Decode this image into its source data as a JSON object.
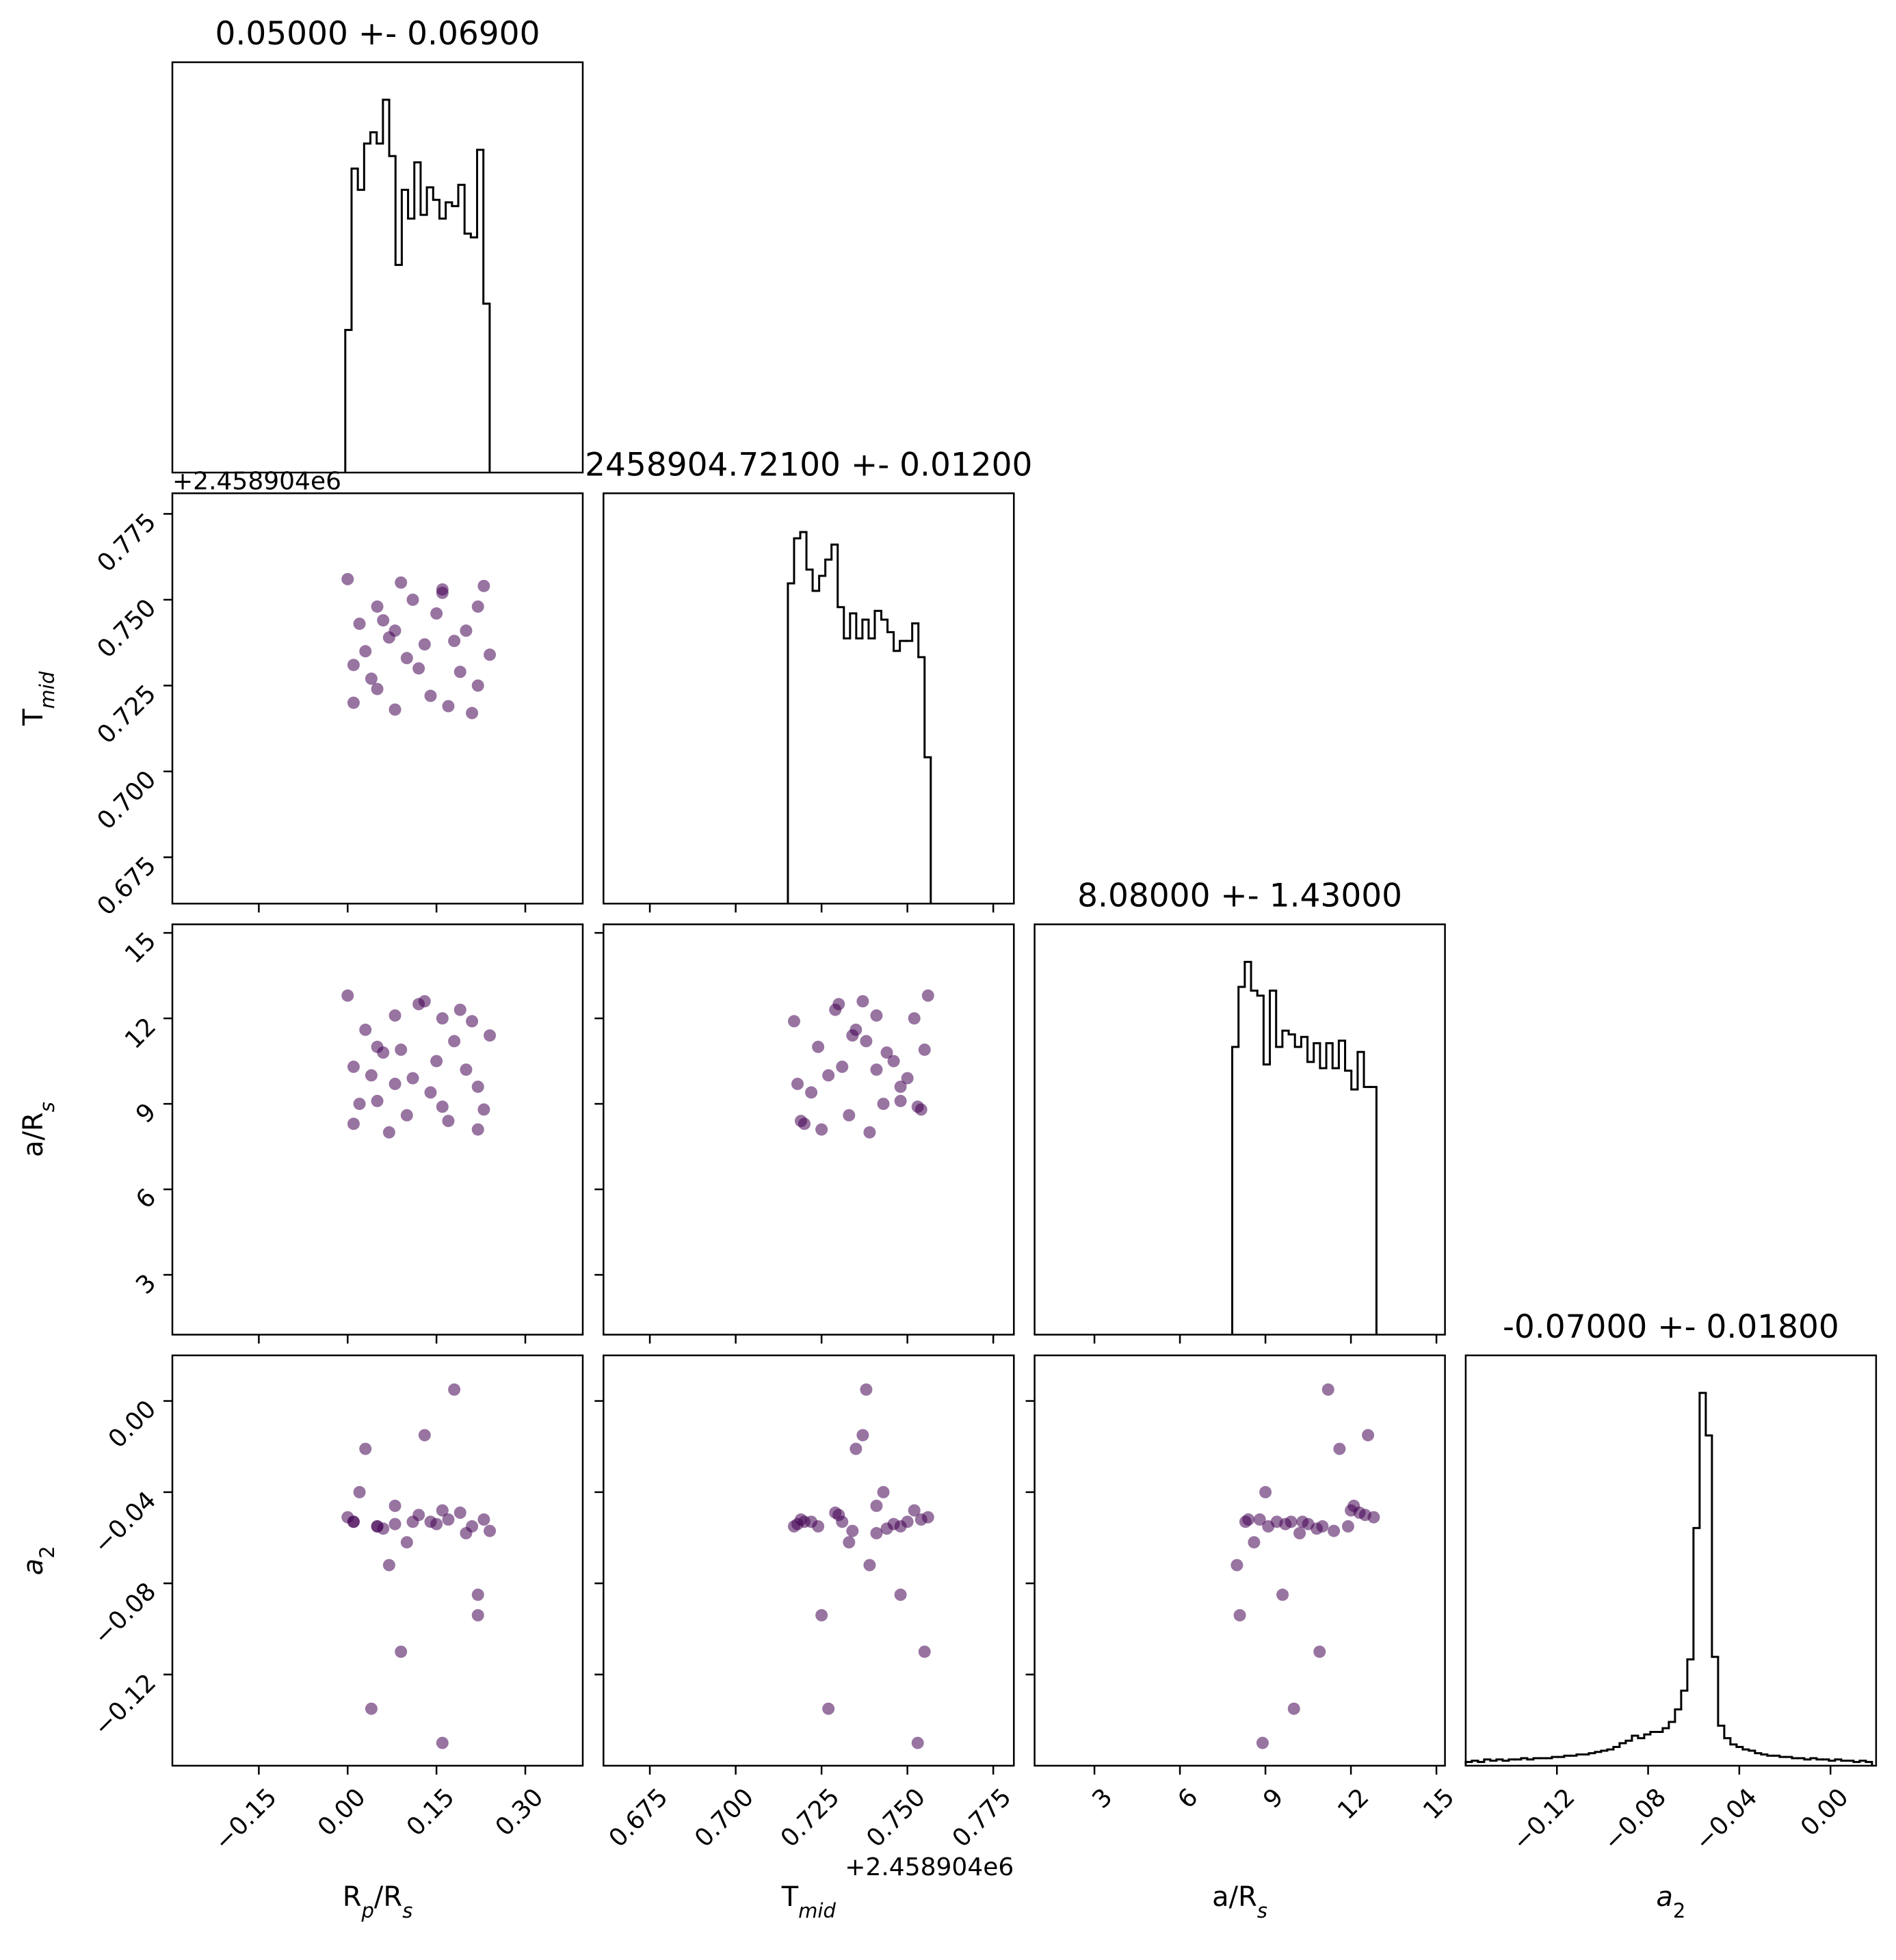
{
  "chart_data": [
    {
      "type": "histogram",
      "title": "0.05000 +- 0.06900",
      "color": "#000000",
      "xlim": [
        -0.296,
        0.397
      ],
      "ylim": [
        0,
        328
      ],
      "bins": [
        -0.004,
        0.0066,
        0.0172,
        0.0278,
        0.0384,
        0.049,
        0.0596,
        0.0702,
        0.0808,
        0.0914,
        0.102,
        0.1126,
        0.1232,
        0.1338,
        0.1444,
        0.155,
        0.1656,
        0.1762,
        0.1868,
        0.1974,
        0.208,
        0.2186,
        0.2292,
        0.2398
      ],
      "values": [
        114,
        243,
        226,
        263,
        272,
        263,
        298,
        253,
        166,
        226,
        203,
        248,
        206,
        228,
        218,
        203,
        216,
        213,
        230,
        191,
        188,
        258,
        135
      ]
    },
    {
      "type": "scatter",
      "color": "#440154",
      "xlim": [
        -0.296,
        0.397
      ],
      "ylim": [
        0.6615,
        0.781
      ],
      "yoffset": "+2.458904e6",
      "xticks": [
        {
          "value": -0.15,
          "label": "−0.15"
        },
        {
          "value": 0,
          "label": "0.00"
        },
        {
          "value": 0.15,
          "label": "0.15"
        },
        {
          "value": 0.3,
          "label": "0.30"
        }
      ],
      "yticks": [
        0.675,
        {
          "value": 0.7,
          "label": "0.700"
        },
        0.725,
        {
          "value": 0.75,
          "label": "0.750"
        },
        0.775
      ],
      "ylabel": [
        {
          "text": "T"
        },
        {
          "text": "mid",
          "sub": true,
          "italic": true
        }
      ],
      "x": [
        0.01,
        0.05,
        0.12,
        0.2,
        0.23,
        0.03,
        0.08,
        0.16,
        0.22,
        0.06,
        0.14,
        0.18,
        0,
        0.1,
        0.21,
        0.04,
        0.11,
        0.19,
        0.07,
        0.15,
        0.02,
        0.24,
        0.09,
        0.17,
        0.13,
        0.05,
        0.22,
        0.01,
        0.16,
        0.08
      ],
      "y": [
        0.72,
        0.748,
        0.73,
        0.741,
        0.754,
        0.735,
        0.718,
        0.752,
        0.725,
        0.744,
        0.722,
        0.738,
        0.756,
        0.733,
        0.717,
        0.727,
        0.75,
        0.729,
        0.739,
        0.746,
        0.743,
        0.734,
        0.755,
        0.719,
        0.737,
        0.724,
        0.748,
        0.731,
        0.753,
        0.741
      ]
    },
    {
      "type": "histogram",
      "title": "2458904.72100 +- 0.01200",
      "color": "#000000",
      "xlim": [
        0.6615,
        0.781
      ],
      "ylim": [
        0,
        328
      ],
      "xticks": [
        0.675,
        {
          "value": 0.7,
          "label": "0.700"
        },
        0.725,
        {
          "value": 0.75,
          "label": "0.750"
        },
        0.775
      ],
      "bins": [
        0.7152,
        0.717,
        0.7188,
        0.7206,
        0.7224,
        0.7243,
        0.7261,
        0.7279,
        0.7297,
        0.7315,
        0.7333,
        0.7351,
        0.7369,
        0.7387,
        0.7405,
        0.7424,
        0.7442,
        0.746,
        0.7478,
        0.7496,
        0.7514,
        0.7532,
        0.755,
        0.7568
      ],
      "values": [
        256,
        292,
        297,
        267,
        250,
        262,
        275,
        287,
        237,
        212,
        232,
        212,
        227,
        212,
        234,
        227,
        217,
        202,
        210,
        210,
        224,
        197,
        117
      ]
    },
    {
      "type": "scatter",
      "color": "#440154",
      "xlim": [
        -0.296,
        0.397
      ],
      "ylim": [
        0.9,
        15.3
      ],
      "xticks": [
        {
          "value": -0.15,
          "label": "−0.15"
        },
        {
          "value": 0,
          "label": "0.00"
        },
        {
          "value": 0.15,
          "label": "0.15"
        },
        {
          "value": 0.3,
          "label": "0.30"
        }
      ],
      "yticks": [
        3,
        6,
        9,
        12,
        15
      ],
      "ylabel": [
        {
          "text": "a/R"
        },
        {
          "text": "s",
          "sub": true,
          "italic": true
        }
      ],
      "x": [
        0.01,
        0.05,
        0.12,
        0.2,
        0.23,
        0.03,
        0.08,
        0.16,
        0.22,
        0.06,
        0.14,
        0.18,
        0,
        0.1,
        0.21,
        0.04,
        0.11,
        0.19,
        0.07,
        0.15,
        0.02,
        0.24,
        0.09,
        0.17,
        0.13,
        0.05,
        0.22,
        0.01,
        0.16,
        0.08
      ],
      "y": [
        8.3,
        9.1,
        12.5,
        10.2,
        8.8,
        11.6,
        9.7,
        12,
        8.1,
        10.8,
        9.4,
        11.2,
        12.8,
        8.6,
        11.9,
        10,
        9.9,
        12.3,
        8,
        10.5,
        9,
        11.4,
        10.9,
        8.4,
        12.6,
        11,
        9.6,
        10.3,
        8.9,
        12.1
      ]
    },
    {
      "type": "scatter",
      "color": "#440154",
      "xlim": [
        0.6615,
        0.781
      ],
      "ylim": [
        0.9,
        15.3
      ],
      "xticks": [
        0.675,
        {
          "value": 0.7,
          "label": "0.700"
        },
        0.725,
        {
          "value": 0.75,
          "label": "0.750"
        },
        0.775
      ],
      "yticks": [
        3,
        6,
        9,
        12,
        15
      ],
      "x": [
        0.72,
        0.748,
        0.73,
        0.741,
        0.754,
        0.735,
        0.718,
        0.752,
        0.725,
        0.744,
        0.722,
        0.738,
        0.756,
        0.733,
        0.717,
        0.727,
        0.75,
        0.729,
        0.739,
        0.746,
        0.743,
        0.734,
        0.755,
        0.719,
        0.737,
        0.724,
        0.748,
        0.731,
        0.753,
        0.741
      ],
      "y": [
        8.3,
        9.1,
        12.5,
        10.2,
        8.8,
        11.6,
        9.7,
        12,
        8.1,
        10.8,
        9.4,
        11.2,
        12.8,
        8.6,
        11.9,
        10,
        9.9,
        12.3,
        8,
        10.5,
        9,
        11.4,
        10.9,
        8.4,
        12.6,
        11,
        9.6,
        10.3,
        8.9,
        12.1
      ]
    },
    {
      "type": "histogram",
      "title": "8.08000 +- 1.43000",
      "color": "#000000",
      "xlim": [
        0.9,
        15.3
      ],
      "ylim": [
        0,
        328
      ],
      "xticks": [
        3,
        6,
        9,
        12,
        15
      ],
      "bins": [
        7.835,
        8.055,
        8.275,
        8.495,
        8.715,
        8.935,
        9.155,
        9.375,
        9.595,
        9.815,
        10.035,
        10.255,
        10.475,
        10.695,
        10.915,
        11.135,
        11.355,
        11.575,
        11.795,
        12.015,
        12.235,
        12.455,
        12.675,
        12.895
      ],
      "values": [
        230,
        278,
        298,
        275,
        271,
        216,
        275,
        230,
        243,
        240,
        230,
        238,
        218,
        233,
        213,
        233,
        213,
        235,
        211,
        196,
        226,
        198,
        198
      ]
    },
    {
      "type": "scatter",
      "color": "#440154",
      "xlim": [
        -0.296,
        0.397
      ],
      "ylim": [
        -0.16,
        0.02
      ],
      "xticks": [
        {
          "value": -0.15,
          "label": "−0.15"
        },
        {
          "value": 0,
          "label": "0.00"
        },
        {
          "value": 0.15,
          "label": "0.15"
        },
        {
          "value": 0.3,
          "label": "0.30"
        }
      ],
      "yticks": [
        {
          "value": -0.12,
          "label": "−0.12"
        },
        {
          "value": -0.08,
          "label": "−0.08"
        },
        {
          "value": -0.04,
          "label": "−0.04"
        },
        {
          "value": 0,
          "label": "0.00"
        }
      ],
      "xlabel": [
        {
          "text": "R"
        },
        {
          "text": "p",
          "sub": true,
          "italic": true
        },
        {
          "text": "/R"
        },
        {
          "text": "s",
          "sub": true,
          "italic": true
        }
      ],
      "ylabel": [
        {
          "text": "a",
          "italic": true
        },
        {
          "text": "2",
          "sub": true
        }
      ],
      "x": [
        0.01,
        0.05,
        0.12,
        0.2,
        0.23,
        0.03,
        0.08,
        0.16,
        0.22,
        0.06,
        0.14,
        0.18,
        0,
        0.1,
        0.21,
        0.04,
        0.11,
        0.19,
        0.07,
        0.15,
        0.02,
        0.24,
        0.09,
        0.17,
        0.13,
        0.05,
        0.22,
        0.01,
        0.16,
        0.08
      ],
      "y": [
        -0.053,
        -0.055,
        -0.05,
        -0.058,
        -0.052,
        -0.021,
        -0.054,
        -0.048,
        -0.094,
        -0.056,
        -0.053,
        0.005,
        -0.051,
        -0.062,
        -0.055,
        -0.135,
        -0.053,
        -0.049,
        -0.072,
        -0.054,
        -0.04,
        -0.057,
        -0.11,
        -0.052,
        -0.015,
        -0.055,
        -0.085,
        -0.053,
        -0.15,
        -0.046
      ]
    },
    {
      "type": "scatter",
      "color": "#440154",
      "xlim": [
        0.6615,
        0.781
      ],
      "ylim": [
        -0.16,
        0.02
      ],
      "xoffset": "+2.458904e6",
      "xticks": [
        0.675,
        {
          "value": 0.7,
          "label": "0.700"
        },
        0.725,
        {
          "value": 0.75,
          "label": "0.750"
        },
        0.775
      ],
      "yticks": [
        {
          "value": -0.12,
          "label": "−0.12"
        },
        {
          "value": -0.08,
          "label": "−0.08"
        },
        {
          "value": -0.04,
          "label": "−0.04"
        },
        {
          "value": 0,
          "label": "0.00"
        }
      ],
      "xlabel": [
        {
          "text": "T"
        },
        {
          "text": "mid",
          "sub": true,
          "italic": true
        }
      ],
      "x": [
        0.72,
        0.748,
        0.73,
        0.741,
        0.754,
        0.735,
        0.718,
        0.752,
        0.725,
        0.744,
        0.722,
        0.738,
        0.756,
        0.733,
        0.717,
        0.727,
        0.75,
        0.729,
        0.739,
        0.746,
        0.743,
        0.734,
        0.755,
        0.719,
        0.737,
        0.724,
        0.748,
        0.731,
        0.753,
        0.741
      ],
      "y": [
        -0.053,
        -0.055,
        -0.05,
        -0.058,
        -0.052,
        -0.021,
        -0.054,
        -0.048,
        -0.094,
        -0.056,
        -0.053,
        0.005,
        -0.051,
        -0.062,
        -0.055,
        -0.135,
        -0.053,
        -0.049,
        -0.072,
        -0.054,
        -0.04,
        -0.057,
        -0.11,
        -0.052,
        -0.015,
        -0.055,
        -0.085,
        -0.053,
        -0.15,
        -0.046
      ]
    },
    {
      "type": "scatter",
      "color": "#440154",
      "xlim": [
        0.9,
        15.3
      ],
      "ylim": [
        -0.16,
        0.02
      ],
      "xticks": [
        3,
        6,
        9,
        12,
        15
      ],
      "yticks": [
        {
          "value": -0.12,
          "label": "−0.12"
        },
        {
          "value": -0.08,
          "label": "−0.08"
        },
        {
          "value": -0.04,
          "label": "−0.04"
        },
        {
          "value": 0,
          "label": "0.00"
        }
      ],
      "xlabel": [
        {
          "text": "a/R"
        },
        {
          "text": "s",
          "sub": true,
          "italic": true
        }
      ],
      "x": [
        8.3,
        9.1,
        12.5,
        10.2,
        8.8,
        11.6,
        9.7,
        12,
        8.1,
        10.8,
        9.4,
        11.2,
        12.8,
        8.6,
        11.9,
        10,
        9.9,
        12.3,
        8,
        10.5,
        9,
        11.4,
        10.9,
        8.4,
        12.6,
        11,
        9.6,
        10.3,
        8.9,
        12.1
      ],
      "y": [
        -0.053,
        -0.055,
        -0.05,
        -0.058,
        -0.052,
        -0.021,
        -0.054,
        -0.048,
        -0.094,
        -0.056,
        -0.053,
        0.005,
        -0.051,
        -0.062,
        -0.055,
        -0.135,
        -0.053,
        -0.049,
        -0.072,
        -0.054,
        -0.04,
        -0.057,
        -0.11,
        -0.052,
        -0.015,
        -0.055,
        -0.085,
        -0.053,
        -0.15,
        -0.046
      ]
    },
    {
      "type": "histogram",
      "title": "-0.07000 +- 0.01800",
      "color": "#000000",
      "xlim": [
        -0.16,
        0.02
      ],
      "ylim": [
        0,
        328
      ],
      "xticks": [
        {
          "value": -0.12,
          "label": "−0.12"
        },
        {
          "value": -0.08,
          "label": "−0.08"
        },
        {
          "value": -0.04,
          "label": "−0.04"
        },
        {
          "value": 0,
          "label": "0.00"
        }
      ],
      "xlabel": [
        {
          "text": "a",
          "italic": true
        },
        {
          "text": "2",
          "sub": true
        }
      ],
      "bins": [
        -0.16,
        -0.1573,
        -0.1546,
        -0.1519,
        -0.1492,
        -0.1465,
        -0.1438,
        -0.1411,
        -0.1384,
        -0.1357,
        -0.133,
        -0.1303,
        -0.1276,
        -0.1249,
        -0.1222,
        -0.1195,
        -0.1168,
        -0.1141,
        -0.1114,
        -0.1087,
        -0.106,
        -0.1033,
        -0.1006,
        -0.0979,
        -0.0952,
        -0.0925,
        -0.0898,
        -0.0871,
        -0.0844,
        -0.0817,
        -0.079,
        -0.0763,
        -0.0736,
        -0.0709,
        -0.0682,
        -0.0655,
        -0.0628,
        -0.0601,
        -0.0574,
        -0.0547,
        -0.052,
        -0.0493,
        -0.0466,
        -0.0439,
        -0.0412,
        -0.0385,
        -0.0358,
        -0.0331,
        -0.0304,
        -0.0277,
        -0.025,
        -0.0223,
        -0.0196,
        -0.0169,
        -0.0142,
        -0.0115,
        -0.0088,
        -0.0061,
        -0.0034,
        -0.0007,
        0.002,
        0.0047,
        0.0074,
        0.0101,
        0.0128,
        0.0155,
        0.0182
      ],
      "values": [
        3,
        4,
        3,
        5,
        4,
        5,
        4,
        5,
        5,
        6,
        5,
        6,
        6,
        6,
        7,
        7,
        8,
        8,
        9,
        9,
        10,
        11,
        12,
        13,
        15,
        18,
        20,
        24,
        22,
        25,
        27,
        27,
        30,
        35,
        45,
        60,
        85,
        190,
        298,
        264,
        87,
        32,
        22,
        17,
        15,
        13,
        12,
        10,
        9,
        8,
        8,
        7,
        7,
        6,
        6,
        5,
        6,
        5,
        5,
        4,
        5,
        4,
        4,
        3,
        4,
        3
      ]
    }
  ]
}
